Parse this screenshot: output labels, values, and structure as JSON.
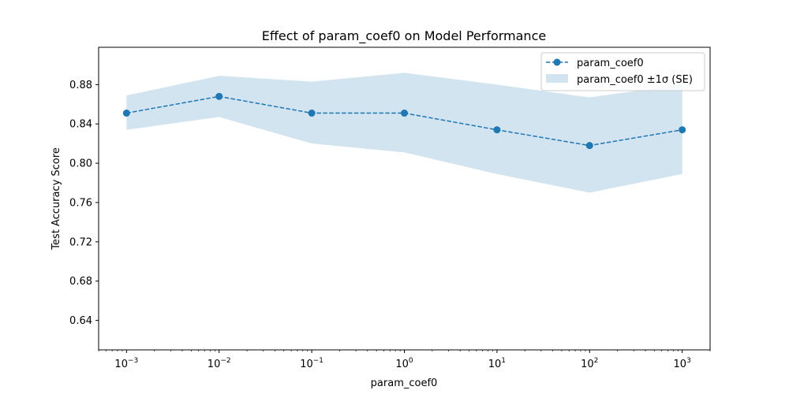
{
  "chart_data": {
    "type": "line",
    "title": "Effect of param_coef0 on Model Performance",
    "xlabel": "param_coef0",
    "ylabel": "Test Accuracy Score",
    "xscale": "log",
    "x": [
      0.001,
      0.01,
      0.1,
      1,
      10,
      100,
      1000
    ],
    "x_tick_labels": [
      {
        "base": "10",
        "exp": "−3"
      },
      {
        "base": "10",
        "exp": "−2"
      },
      {
        "base": "10",
        "exp": "−1"
      },
      {
        "base": "10",
        "exp": "0"
      },
      {
        "base": "10",
        "exp": "1"
      },
      {
        "base": "10",
        "exp": "2"
      },
      {
        "base": "10",
        "exp": "3"
      }
    ],
    "y_ticks": [
      "0.64",
      "0.68",
      "0.72",
      "0.76",
      "0.80",
      "0.84",
      "0.88"
    ],
    "xlim": [
      0.0005,
      2000
    ],
    "ylim": [
      0.61,
      0.918
    ],
    "grid": false,
    "legend_position": "top-right",
    "series": [
      {
        "name": "param_coef0",
        "values": [
          0.851,
          0.868,
          0.851,
          0.851,
          0.834,
          0.818,
          0.834
        ],
        "color": "#1f77b4",
        "line_style": "dashed",
        "marker": "circle"
      }
    ],
    "band": {
      "name": "param_coef0 ±1σ (SE)",
      "lower": [
        0.834,
        0.847,
        0.82,
        0.811,
        0.789,
        0.77,
        0.789
      ],
      "upper": [
        0.869,
        0.889,
        0.883,
        0.892,
        0.88,
        0.867,
        0.88
      ],
      "color": "#1f77b4",
      "opacity": 0.2
    }
  }
}
